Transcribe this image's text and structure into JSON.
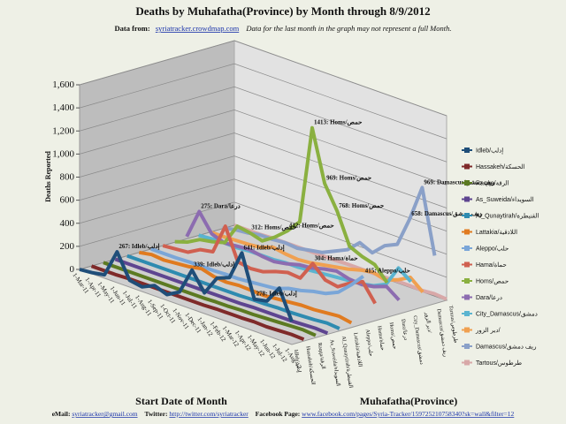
{
  "header": {
    "data_from": "Data from:",
    "source_link": "syriatracker.crowdmap.com",
    "note": "Data for the last month  in the graph may not represent a full Month."
  },
  "footer": {
    "email_label": "eMail:",
    "email": "syriatracker@gmail.com",
    "twitter_label": "Twitter:",
    "twitter": "http://twitter.com/syriatracker",
    "facebook_label": "Facebook  Page:",
    "facebook": "www.facebook.com/pages/Syria-Tracker/159725210758340?sk=wall&filter=12"
  },
  "chart_data": {
    "type": "line3d",
    "title": "Deaths by Muhafatha(Province) by Month through 8/9/2012",
    "y_label": "Deaths Reported",
    "x_label": "Start Date of Month",
    "z_label": "Muhafatha(Province)",
    "categories": [
      "1-Mar-11",
      "1-Apr-11",
      "1-May-11",
      "1-Jun-11",
      "1-Jul-11",
      "1-Aug-11",
      "1-Sep-11",
      "1-Oct-11",
      "1-Nov-11",
      "1-Dec-11",
      "1-Jan-12",
      "1-Feb-12",
      "1-Mar-12",
      "1-Apr-12",
      "1-May-12",
      "1-Jun-12",
      "1-Jul-12",
      "1-Aug-12"
    ],
    "ylim": [
      0,
      1600
    ],
    "yticks": [
      0,
      200,
      400,
      600,
      800,
      {
        "value": 1000,
        "label": "1,000"
      },
      {
        "value": 1200,
        "label": "1,200"
      },
      {
        "value": 1400,
        "label": "1,400"
      },
      {
        "value": 1600,
        "label": "1,600"
      }
    ],
    "grid": true,
    "series": [
      {
        "name": "Idleb/إدلب",
        "color": "#1f4e79",
        "values": [
          0,
          10,
          30,
          267,
          60,
          40,
          90,
          50,
          110,
          339,
          180,
          345,
          388,
          641,
          278,
          300,
          450,
          200
        ],
        "value_labels": [
          null,
          null,
          null,
          "267: Idleb/إدلب",
          null,
          null,
          null,
          null,
          null,
          "339: Idleb/إدلب",
          null,
          null,
          null,
          "641: Idleb/إدلب",
          "278: Idleb/إدلب",
          null,
          null,
          null
        ]
      },
      {
        "name": "Hassakeh/الحسكة",
        "color": "#7f2a2a",
        "values": [
          0,
          0,
          0,
          5,
          5,
          5,
          5,
          5,
          5,
          5,
          10,
          10,
          10,
          15,
          10,
          15,
          20,
          15
        ]
      },
      {
        "name": "Raqqa/الرقة",
        "color": "#5c7a22",
        "values": [
          0,
          0,
          0,
          0,
          0,
          0,
          0,
          0,
          0,
          5,
          5,
          10,
          10,
          15,
          20,
          25,
          30,
          20
        ]
      },
      {
        "name": "As_Suweida/السويداء",
        "color": "#5e4590",
        "values": [
          0,
          0,
          0,
          0,
          0,
          0,
          0,
          0,
          0,
          0,
          0,
          5,
          5,
          5,
          5,
          10,
          15,
          10
        ]
      },
      {
        "name": "Al_Qunaytirah/القنيطرة",
        "color": "#2e8bb0",
        "values": [
          0,
          0,
          0,
          0,
          0,
          0,
          0,
          0,
          0,
          0,
          5,
          5,
          10,
          10,
          15,
          20,
          30,
          20
        ]
      },
      {
        "name": "Lattakia/اللاذقية",
        "color": "#e07b20",
        "values": [
          0,
          20,
          10,
          20,
          30,
          50,
          20,
          10,
          20,
          15,
          10,
          20,
          30,
          40,
          40,
          50,
          60,
          40
        ]
      },
      {
        "name": "Aleppo/حلب",
        "color": "#7aa6d8",
        "values": [
          0,
          0,
          0,
          5,
          5,
          5,
          10,
          10,
          20,
          30,
          40,
          80,
          100,
          130,
          150,
          200,
          300,
          415
        ],
        "value_labels": [
          null,
          null,
          null,
          null,
          null,
          null,
          null,
          null,
          null,
          null,
          null,
          null,
          null,
          null,
          null,
          null,
          null,
          "415: Aleppo/حلب"
        ]
      },
      {
        "name": "Hama/حماة",
        "color": "#d06050",
        "values": [
          0,
          10,
          20,
          80,
          100,
          360,
          90,
          70,
          80,
          120,
          150,
          140,
          304,
          200,
          180,
          250,
          300,
          150
        ],
        "value_labels": [
          null,
          null,
          null,
          null,
          null,
          null,
          null,
          null,
          null,
          null,
          null,
          null,
          "304: Hama/حماة",
          null,
          null,
          null,
          null,
          null
        ]
      },
      {
        "name": "Homs/حمص",
        "color": "#8ab040",
        "values": [
          5,
          40,
          100,
          120,
          150,
          330,
          312,
          280,
          350,
          442,
          560,
          1413,
          969,
          768,
          500,
          450,
          420,
          300
        ],
        "value_labels": [
          null,
          null,
          null,
          null,
          null,
          null,
          "312: Homs/حمص",
          null,
          null,
          "442: Homs/حمص",
          null,
          "1413: Homs/حمص",
          "969: Homs/حمص",
          "768: Homs/حمص",
          null,
          null,
          null,
          null
        ]
      },
      {
        "name": "Dara/درعا",
        "color": "#8c6cb0",
        "values": [
          20,
          275,
          120,
          80,
          90,
          100,
          80,
          70,
          90,
          120,
          130,
          160,
          180,
          150,
          140,
          160,
          200,
          120
        ],
        "value_labels": [
          null,
          "275: Dara/درعا",
          null,
          null,
          null,
          null,
          null,
          null,
          null,
          null,
          null,
          null,
          null,
          null,
          null,
          null,
          null,
          null
        ]
      },
      {
        "name": "City_Damascus/دمشق",
        "color": "#5ab4d0",
        "values": [
          2,
          10,
          15,
          10,
          20,
          20,
          20,
          30,
          30,
          40,
          50,
          60,
          70,
          80,
          100,
          150,
          330,
          250
        ]
      },
      {
        "name": "دير الزور/",
        "color": "#f0a050",
        "values": [
          0,
          0,
          5,
          10,
          20,
          60,
          40,
          30,
          40,
          60,
          80,
          100,
          130,
          150,
          120,
          160,
          220,
          130
        ]
      },
      {
        "name": "Damascus/ريف دمشق",
        "color": "#8aa0c8",
        "values": [
          5,
          30,
          40,
          60,
          60,
          70,
          60,
          80,
          100,
          150,
          200,
          300,
          250,
          350,
          400,
          658,
          969,
          417
        ],
        "value_labels": [
          null,
          null,
          null,
          null,
          null,
          null,
          null,
          null,
          null,
          null,
          null,
          null,
          null,
          null,
          null,
          "658: Damascus/ريف دمشق",
          "969: Damascus/ريف دمشق",
          null
        ]
      },
      {
        "name": "Tartous/طرطوس",
        "color": "#d8a8a8",
        "values": [
          0,
          0,
          0,
          5,
          5,
          5,
          5,
          5,
          5,
          10,
          10,
          10,
          10,
          15,
          15,
          10,
          20,
          10
        ]
      }
    ]
  }
}
